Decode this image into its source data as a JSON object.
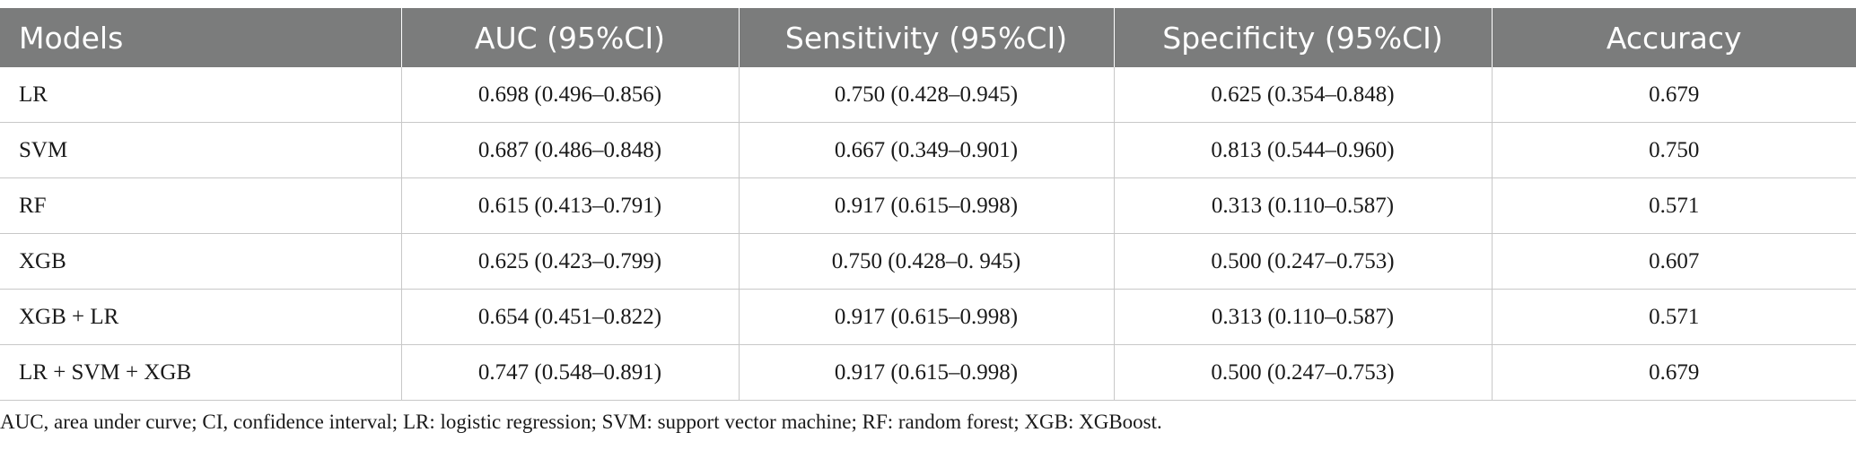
{
  "table": {
    "headers": [
      "Models",
      "AUC (95%CI)",
      "Sensitivity (95%CI)",
      "Specificity (95%CI)",
      "Accuracy"
    ],
    "rows": [
      [
        "LR",
        "0.698 (0.496–0.856)",
        "0.750 (0.428–0.945)",
        "0.625 (0.354–0.848)",
        "0.679"
      ],
      [
        "SVM",
        "0.687 (0.486–0.848)",
        "0.667 (0.349–0.901)",
        "0.813 (0.544–0.960)",
        "0.750"
      ],
      [
        "RF",
        "0.615 (0.413–0.791)",
        "0.917 (0.615–0.998)",
        "0.313 (0.110–0.587)",
        "0.571"
      ],
      [
        "XGB",
        "0.625 (0.423–0.799)",
        "0.750 (0.428–0. 945)",
        "0.500 (0.247–0.753)",
        "0.607"
      ],
      [
        "XGB + LR",
        "0.654 (0.451–0.822)",
        "0.917 (0.615–0.998)",
        "0.313 (0.110–0.587)",
        "0.571"
      ],
      [
        "LR + SVM + XGB",
        "0.747 (0.548–0.891)",
        "0.917 (0.615–0.998)",
        "0.500 (0.247–0.753)",
        "0.679"
      ]
    ]
  },
  "footnote": "AUC, area under curve; CI, confidence interval; LR: logistic regression; SVM: support vector machine; RF: random forest; XGB: XGBoost.",
  "colors": {
    "header_bg": "#7b7c7c",
    "header_text": "#ffffff",
    "row_border": "#c8c8c8",
    "body_text": "#1a1a1a"
  }
}
